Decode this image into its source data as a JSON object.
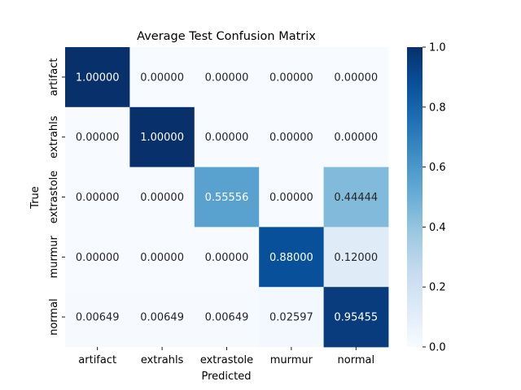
{
  "chart_data": {
    "type": "heatmap",
    "title": "Average Test Confusion Matrix",
    "xlabel": "Predicted",
    "ylabel": "True",
    "x_categories": [
      "artifact",
      "extrahls",
      "extrastole",
      "murmur",
      "normal"
    ],
    "y_categories": [
      "artifact",
      "extrahls",
      "extrastole",
      "murmur",
      "normal"
    ],
    "values": [
      [
        1.0,
        0.0,
        0.0,
        0.0,
        0.0
      ],
      [
        0.0,
        1.0,
        0.0,
        0.0,
        0.0
      ],
      [
        0.0,
        0.0,
        0.55556,
        0.0,
        0.44444
      ],
      [
        0.0,
        0.0,
        0.0,
        0.88,
        0.12
      ],
      [
        0.00649,
        0.00649,
        0.00649,
        0.02597,
        0.95455
      ]
    ],
    "value_format": "5 decimals",
    "colormap": "Blues",
    "colorbar": {
      "range": [
        0.0,
        1.0
      ],
      "ticks": [
        0.0,
        0.2,
        0.4,
        0.6,
        0.8,
        1.0
      ],
      "tick_labels": [
        "0.0",
        "0.2",
        "0.4",
        "0.6",
        "0.8",
        "1.0"
      ]
    },
    "grid": false
  }
}
